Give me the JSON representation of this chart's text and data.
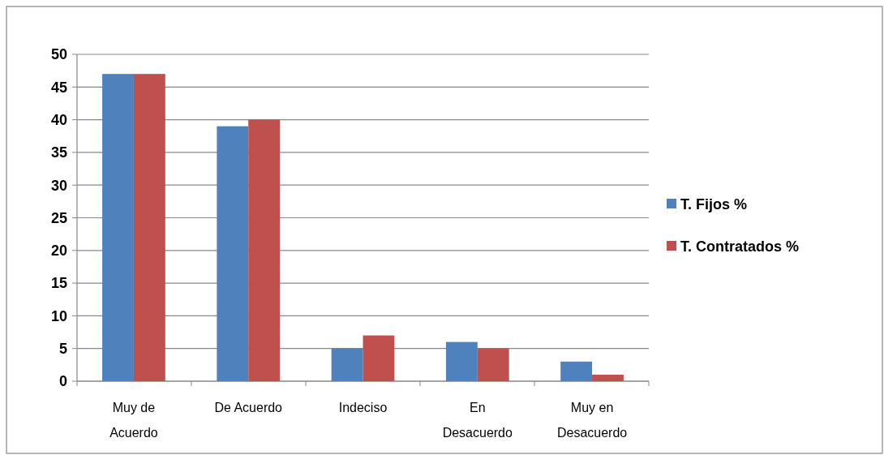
{
  "chart_data": {
    "type": "bar",
    "categories": [
      "Muy de\nAcuerdo",
      "De Acuerdo",
      "Indeciso",
      "En\nDesacuerdo",
      "Muy en\nDesacuerdo"
    ],
    "series": [
      {
        "name": "T. Fijos %",
        "color": "#4f81bd",
        "values": [
          47,
          39,
          5,
          6,
          3
        ]
      },
      {
        "name": "T. Contratados %",
        "color": "#c0504d",
        "values": [
          47,
          40,
          7,
          5,
          1
        ]
      }
    ],
    "ylim": [
      0,
      50
    ],
    "yticks": [
      0,
      5,
      10,
      15,
      20,
      25,
      30,
      35,
      40,
      45,
      50
    ],
    "grid": "y",
    "legend": "right"
  }
}
